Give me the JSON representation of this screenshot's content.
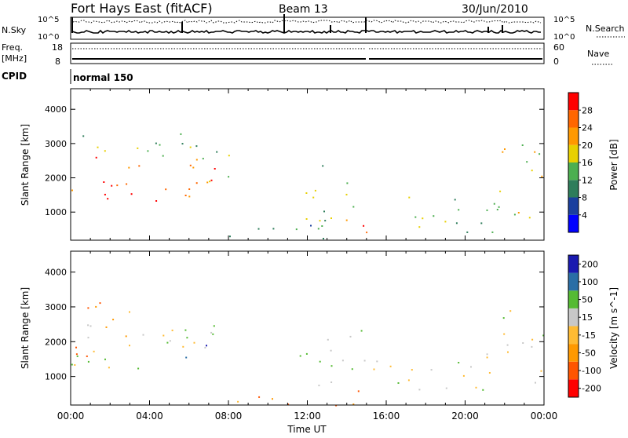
{
  "header": {
    "station": "Fort Hays East (fitACF)",
    "beam": "Beam 13",
    "date": "30/Jun/2010"
  },
  "noise_panel": {
    "left_label": "N.Sky",
    "right_label": "N.Search",
    "ticks": [
      "10^5",
      "10^0"
    ],
    "right_ticks": [
      "10^5",
      "10^0"
    ]
  },
  "freq_panel": {
    "left_label": "Freq.",
    "left_unit": "[MHz]",
    "left_ticks": [
      "18",
      "8"
    ],
    "right_label": "Nave",
    "right_ticks": [
      "60",
      "0"
    ]
  },
  "cpid": {
    "label": "CPID",
    "value": "normal 150"
  },
  "colors": {
    "power": [
      "#0000ff",
      "#1a3f9e",
      "#2e7d5b",
      "#4caf50",
      "#e8d000",
      "#ff9900",
      "#ff6600",
      "#ff0000"
    ],
    "velocity": [
      "#ff0000",
      "#ff5500",
      "#ff9900",
      "#ffbb33",
      "#c8c8c8",
      "#55bb33",
      "#2a6ea6",
      "#1a1ab0"
    ]
  },
  "chart_data": [
    {
      "type": "heatmap",
      "title": "",
      "xlabel": "Time UT",
      "ylabel": "Slant Range [km]",
      "x_ticks": [
        "00:00",
        "04:00",
        "08:00",
        "12:00",
        "16:00",
        "20:00",
        "00:00"
      ],
      "y_ticks": [
        "1000",
        "2000",
        "3000",
        "4000"
      ],
      "xlim": [
        0,
        24
      ],
      "ylim": [
        180,
        4600
      ],
      "colorbar_label": "Power [dB]",
      "colorbar_ticks": [
        "4",
        "8",
        "12",
        "16",
        "20",
        "24",
        "28"
      ],
      "scatter_bands": [
        {
          "t0": 0.0,
          "t1": 7.3,
          "r0": 1200,
          "r1": 2800,
          "level": 6
        },
        {
          "t0": 0.0,
          "t1": 7.0,
          "r0": 2400,
          "r1": 3300,
          "level": 3
        },
        {
          "t0": 7.0,
          "t1": 8.2,
          "r0": 1400,
          "r1": 3000,
          "level": 3
        },
        {
          "t0": 8.0,
          "t1": 15.0,
          "r0": 180,
          "r1": 700,
          "level": 2
        },
        {
          "t0": 11.5,
          "t1": 15.0,
          "r0": 600,
          "r1": 2400,
          "level": 3
        },
        {
          "t0": 13.5,
          "t1": 15.3,
          "r0": 200,
          "r1": 1000,
          "level": 6
        },
        {
          "t0": 15.3,
          "t1": 21.5,
          "r0": 400,
          "r1": 1500,
          "level": 3
        },
        {
          "t0": 21.0,
          "t1": 24.0,
          "r0": 800,
          "r1": 3200,
          "level": 4
        }
      ]
    },
    {
      "type": "heatmap",
      "title": "",
      "xlabel": "Time UT",
      "ylabel": "Slant Range [km]",
      "x_ticks": [
        "00:00",
        "04:00",
        "08:00",
        "12:00",
        "16:00",
        "20:00",
        "00:00"
      ],
      "y_ticks": [
        "1000",
        "2000",
        "3000",
        "4000"
      ],
      "xlim": [
        0,
        24
      ],
      "ylim": [
        180,
        4600
      ],
      "colorbar_label": "Velocity [m s^-1]",
      "colorbar_ticks": [
        "200",
        "100",
        "50",
        "15",
        "-15",
        "-50",
        "-100",
        "-200"
      ],
      "scatter_bands": [
        {
          "t0": 0.0,
          "t1": 7.3,
          "r0": 1200,
          "r1": 2800,
          "level": 4
        },
        {
          "t0": 0.0,
          "t1": 3.0,
          "r0": 1300,
          "r1": 3300,
          "level": 2
        },
        {
          "t0": 5.8,
          "t1": 7.3,
          "r0": 1500,
          "r1": 2000,
          "level": 7
        },
        {
          "t0": 8.0,
          "t1": 15.0,
          "r0": 180,
          "r1": 700,
          "level": 2
        },
        {
          "t0": 11.5,
          "t1": 15.0,
          "r0": 600,
          "r1": 2400,
          "level": 4
        },
        {
          "t0": 15.3,
          "t1": 21.5,
          "r0": 400,
          "r1": 1500,
          "level": 4
        },
        {
          "t0": 21.0,
          "t1": 24.0,
          "r0": 800,
          "r1": 3200,
          "level": 4
        }
      ]
    }
  ]
}
